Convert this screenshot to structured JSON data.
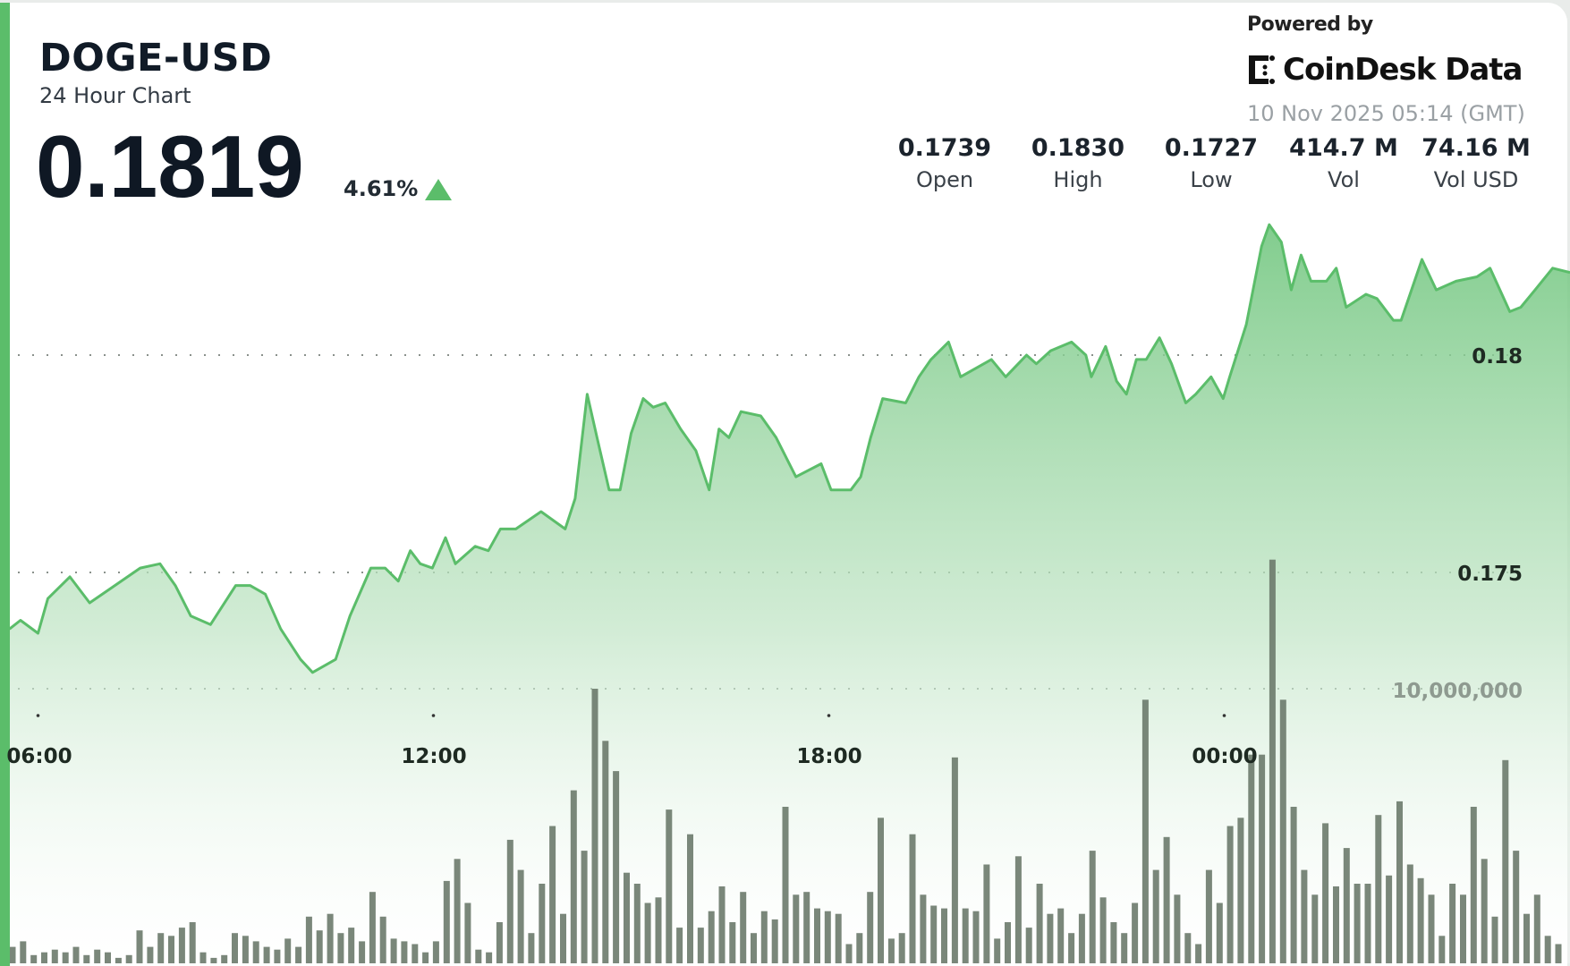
{
  "header": {
    "symbol": "DOGE-USD",
    "subtitle": "24 Hour Chart",
    "price": "0.1819",
    "change_pct": "4.61%",
    "change_direction": "up",
    "up_color": "#5bbd6a"
  },
  "branding": {
    "powered_by": "Powered by",
    "logo_text": "CoinDesk Data",
    "timestamp": "10 Nov 2025 05:14 (GMT)"
  },
  "stats": [
    {
      "value": "0.1739",
      "label": "Open"
    },
    {
      "value": "0.1830",
      "label": "High"
    },
    {
      "value": "0.1727",
      "label": "Low"
    },
    {
      "value": "414.7 M",
      "label": "Vol"
    },
    {
      "value": "74.16 M",
      "label": "Vol USD"
    }
  ],
  "chart_data": {
    "type": "area",
    "title": "",
    "price_ticks": [
      "0.18",
      "0.175"
    ],
    "price_tick_values": [
      0.18,
      0.175
    ],
    "volume_tick": "10,000,000",
    "volume_tick_value": 10000000,
    "time_ticks": [
      "06:00",
      "12:00",
      "18:00",
      "00:00"
    ],
    "grid": "dotted horizontal",
    "line_color": "#5bbd6a",
    "volume_color": "#6c7a6b",
    "price_series": {
      "time": [
        "05:34",
        "05:44",
        "06:00",
        "06:09",
        "06:29",
        "06:47",
        "07:10",
        "07:33",
        "07:51",
        "08:05",
        "08:19",
        "08:37",
        "09:00",
        "09:13",
        "09:27",
        "09:41",
        "09:59",
        "10:10",
        "10:31",
        "10:44",
        "11:03",
        "11:16",
        "11:28",
        "11:39",
        "11:48",
        "11:59",
        "12:11",
        "12:20",
        "12:38",
        "12:50",
        "13:01",
        "13:15",
        "13:38",
        "14:00",
        "14:09",
        "14:20",
        "14:29",
        "14:40",
        "14:50",
        "15:00",
        "15:11",
        "15:20",
        "15:31",
        "15:45",
        "15:59",
        "16:11",
        "16:20",
        "16:29",
        "16:40",
        "16:58",
        "17:12",
        "17:30",
        "17:53",
        "18:02",
        "18:20",
        "18:29",
        "18:38",
        "18:49",
        "19:10",
        "19:22",
        "19:33",
        "19:49",
        "20:00",
        "20:28",
        "20:41",
        "21:00",
        "21:09",
        "21:22",
        "21:41",
        "21:54",
        "21:59",
        "22:12",
        "22:22",
        "22:31",
        "22:40",
        "22:49",
        "23:01",
        "23:12",
        "23:25",
        "23:34",
        "23:48",
        "23:59",
        "00:05",
        "00:20",
        "00:34",
        "00:41",
        "00:52",
        "01:01",
        "01:10",
        "01:19",
        "01:33",
        "01:42",
        "01:51",
        "02:09",
        "02:19",
        "02:34",
        "02:41",
        "03:00",
        "03:13",
        "03:31",
        "03:50",
        "04:02",
        "04:20",
        "04:30",
        "04:43",
        "04:59",
        "05:14"
      ],
      "price": [
        0.1737,
        0.1739,
        0.1736,
        0.1744,
        0.1749,
        0.1743,
        0.1747,
        0.1751,
        0.1752,
        0.1747,
        0.174,
        0.1738,
        0.1747,
        0.1747,
        0.1745,
        0.1737,
        0.173,
        0.1727,
        0.173,
        0.174,
        0.1751,
        0.1751,
        0.1748,
        0.1755,
        0.1752,
        0.1751,
        0.1758,
        0.1752,
        0.1756,
        0.1755,
        0.176,
        0.176,
        0.1764,
        0.176,
        0.1767,
        0.1791,
        0.1781,
        0.1769,
        0.1769,
        0.1782,
        0.179,
        0.1788,
        0.1789,
        0.1783,
        0.1778,
        0.1769,
        0.1783,
        0.1781,
        0.1787,
        0.1786,
        0.1781,
        0.1772,
        0.1775,
        0.1769,
        0.1769,
        0.1772,
        0.1781,
        0.179,
        0.1789,
        0.1795,
        0.1799,
        0.1803,
        0.1795,
        0.1799,
        0.1795,
        0.18,
        0.1798,
        0.1801,
        0.1803,
        0.18,
        0.1795,
        0.1802,
        0.1794,
        0.1791,
        0.1799,
        0.1799,
        0.1804,
        0.1798,
        0.1789,
        0.1791,
        0.1795,
        0.179,
        0.1795,
        0.1807,
        0.1825,
        0.183,
        0.1826,
        0.1815,
        0.1823,
        0.1817,
        0.1817,
        0.182,
        0.1811,
        0.1814,
        0.1813,
        0.1808,
        0.1808,
        0.1822,
        0.1815,
        0.1817,
        0.1818,
        0.182,
        0.181,
        0.1811,
        0.1815,
        0.182,
        0.1819
      ]
    },
    "volume_millions": [
      0.6,
      0.8,
      0.3,
      0.4,
      0.5,
      0.4,
      0.6,
      0.3,
      0.5,
      0.4,
      0.2,
      0.3,
      1.2,
      0.6,
      1.1,
      1.0,
      1.3,
      1.5,
      0.4,
      0.2,
      0.3,
      1.1,
      1.0,
      0.8,
      0.6,
      0.5,
      0.9,
      0.6,
      1.7,
      1.2,
      1.8,
      1.1,
      1.3,
      0.8,
      2.6,
      1.7,
      0.9,
      0.8,
      0.7,
      0.4,
      0.8,
      3.0,
      3.8,
      2.2,
      0.5,
      0.4,
      1.5,
      4.5,
      3.4,
      1.1,
      2.9,
      5.0,
      1.8,
      6.3,
      4.1,
      10.0,
      8.1,
      7.0,
      3.3,
      2.9,
      2.2,
      2.4,
      5.6,
      1.3,
      4.7,
      1.3,
      1.9,
      2.8,
      1.5,
      2.6,
      1.1,
      1.9,
      1.6,
      5.7,
      2.5,
      2.6,
      2.0,
      1.9,
      1.8,
      0.7,
      1.1,
      2.6,
      5.3,
      0.9,
      1.1,
      4.7,
      2.5,
      2.1,
      2.0,
      7.5,
      2.0,
      1.9,
      3.6,
      0.9,
      1.5,
      3.9,
      1.3,
      2.9,
      1.8,
      2.0,
      1.1,
      1.8,
      4.1,
      2.4,
      1.5,
      1.1,
      2.2,
      9.6,
      3.4,
      4.6,
      2.5,
      1.1,
      0.7,
      3.4,
      2.2,
      5.0,
      5.3,
      7.6,
      7.6,
      14.7,
      9.6,
      5.7,
      3.4,
      2.5,
      5.1,
      2.8,
      4.2,
      2.9,
      2.9,
      5.4,
      3.2,
      5.9,
      3.6,
      3.1,
      2.5,
      1.0,
      2.9,
      2.5,
      5.7,
      3.8,
      1.7,
      7.4,
      4.1,
      1.8,
      2.5,
      1.0,
      0.7
    ]
  }
}
